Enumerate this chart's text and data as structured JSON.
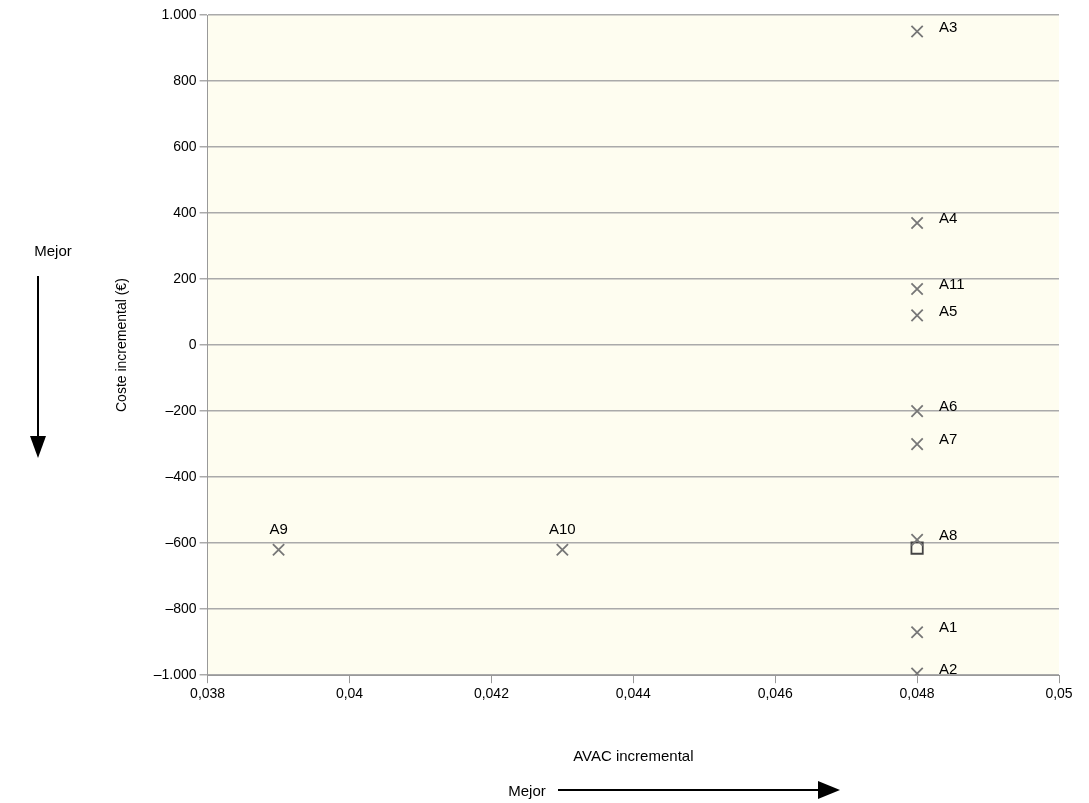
{
  "chart_data": {
    "type": "scatter",
    "xlabel": "AVAC incremental",
    "ylabel": "Coste incremental (€)",
    "series": [
      {
        "color": "#777777",
        "marker": "cross",
        "x": [
          0.048,
          0.048,
          0.048,
          0.048,
          0.048,
          0.048,
          0.048,
          0.048,
          0.039,
          0.043,
          0.048
        ],
        "values": [
          -870,
          -995,
          950,
          370,
          90,
          -200,
          -300,
          -590,
          -620,
          -620,
          170
        ]
      },
      {
        "color": "#444444",
        "marker": "square",
        "x": [
          0.048
        ],
        "values": [
          -615
        ]
      }
    ],
    "xlim": [
      0.038,
      0.05
    ],
    "xticks": [
      {
        "value": 0.038,
        "label": "0,038"
      },
      {
        "value": 0.04,
        "label": "0,04"
      },
      {
        "value": 0.042,
        "label": "0,042"
      },
      {
        "value": 0.044,
        "label": "0,044"
      },
      {
        "value": 0.046,
        "label": "0,046"
      },
      {
        "value": 0.048,
        "label": "0,048"
      },
      {
        "value": 0.05,
        "label": "0,05"
      }
    ],
    "ylim": [
      -1000,
      1000
    ],
    "yticks": [
      {
        "value": -1000,
        "label": "–1.000"
      },
      {
        "value": -800,
        "label": "–800"
      },
      {
        "value": -600,
        "label": "–600"
      },
      {
        "value": -400,
        "label": "–400"
      },
      {
        "value": -200,
        "label": "–200"
      },
      0,
      200,
      400,
      600,
      800,
      {
        "value": 1000,
        "label": "1.000"
      }
    ],
    "grid": "y",
    "legend": false,
    "annotations": [
      {
        "text": "A1",
        "x": 0.048,
        "y": -870
      },
      {
        "text": "A2",
        "x": 0.048,
        "y": -995
      },
      {
        "text": "A3",
        "x": 0.048,
        "y": 950
      },
      {
        "text": "A4",
        "x": 0.048,
        "y": 370
      },
      {
        "text": "A5",
        "x": 0.048,
        "y": 90
      },
      {
        "text": "A6",
        "x": 0.048,
        "y": -200
      },
      {
        "text": "A7",
        "x": 0.048,
        "y": -300
      },
      {
        "text": "A8",
        "x": 0.048,
        "y": -590
      },
      {
        "text": "A9",
        "x": 0.039,
        "y": -620
      },
      {
        "text": "A10",
        "x": 0.043,
        "y": -620
      },
      {
        "text": "A11",
        "x": 0.048,
        "y": 170
      },
      "Mejor",
      "Mejor"
    ]
  }
}
